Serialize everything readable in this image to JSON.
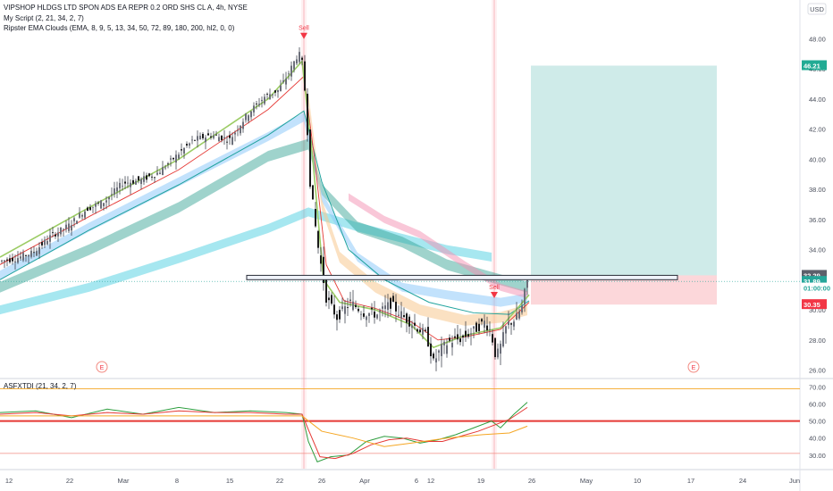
{
  "chart_data": [
    {
      "type": "candlestick",
      "title": "VIPSHOP HLDGS LTD SPON ADS EA REPR 0.2 ORD SHS CL A, 4h, NYSE",
      "indicators": [
        "My Script (2, 21, 34, 2, 7)",
        "Ripster EMA Clouds (EMA, 8, 9, 5, 13, 34, 50, 72, 89, 180, 200, hl2, 0, 0)"
      ],
      "currency": "USD",
      "ylim": [
        25.5,
        49.5
      ],
      "ticks_y": [
        26,
        28,
        30,
        32,
        34,
        36,
        38,
        40,
        42,
        44,
        46,
        48
      ],
      "tick_labels_y": [
        "26.00",
        "28.00",
        "30.00",
        "32.00",
        "34.00",
        "36.00",
        "38.00",
        "40.00",
        "42.00",
        "44.00",
        "46.00",
        "48.00"
      ],
      "x_labels": [
        "12",
        "22",
        "Mar",
        "8",
        "15",
        "22",
        "26",
        "Apr",
        "6",
        "12",
        "19",
        "26",
        "May",
        "10",
        "17",
        "24",
        "Jun"
      ],
      "price_badges": [
        {
          "label": "46.21",
          "value": 46.21,
          "color": "#22ab94"
        },
        {
          "label": "32.29",
          "value": 32.29,
          "color": "#5d606b"
        },
        {
          "label": "31.89",
          "value": 31.89,
          "color": "#26a69a"
        },
        {
          "label": "01:00:00",
          "value": 31.45,
          "color": "#26a69a"
        },
        {
          "label": "30.35",
          "value": 30.35,
          "color": "#f23645"
        }
      ],
      "signals": [
        {
          "label": "Sell",
          "price": 47.8
        },
        {
          "label": "Sell",
          "price": 30.6
        }
      ],
      "earnings_marker": "E",
      "long_position": {
        "entry": 32.29,
        "target": 46.21,
        "stop": 30.35
      },
      "support_zone": [
        32.0,
        32.29
      ],
      "candle_waypoints": [
        [
          0,
          33.2
        ],
        [
          20,
          33.4
        ],
        [
          40,
          33.8
        ],
        [
          60,
          34.9
        ],
        [
          80,
          35.6
        ],
        [
          100,
          36.7
        ],
        [
          120,
          37.2
        ],
        [
          140,
          38.4
        ],
        [
          160,
          38.6
        ],
        [
          180,
          39.1
        ],
        [
          200,
          40.2
        ],
        [
          220,
          41.3
        ],
        [
          240,
          41.6
        ],
        [
          260,
          41.3
        ],
        [
          280,
          43.0
        ],
        [
          300,
          44.2
        ],
        [
          315,
          44.6
        ],
        [
          325,
          45.6
        ],
        [
          335,
          46.8
        ],
        [
          340,
          47.0
        ],
        [
          345,
          44.0
        ],
        [
          350,
          38.5
        ],
        [
          358,
          34.5
        ],
        [
          368,
          30.8
        ],
        [
          380,
          29.5
        ],
        [
          395,
          30.5
        ],
        [
          410,
          29.8
        ],
        [
          425,
          29.7
        ],
        [
          440,
          30.4
        ],
        [
          455,
          29.5
        ],
        [
          470,
          28.8
        ],
        [
          480,
          28.3
        ],
        [
          488,
          26.5
        ],
        [
          496,
          27.4
        ],
        [
          506,
          27.9
        ],
        [
          520,
          28.1
        ],
        [
          535,
          28.7
        ],
        [
          545,
          29.2
        ],
        [
          552,
          28.6
        ],
        [
          558,
          26.8
        ],
        [
          563,
          27.6
        ],
        [
          570,
          29.0
        ],
        [
          580,
          29.4
        ],
        [
          588,
          30.3
        ],
        [
          592,
          31.9
        ]
      ]
    },
    {
      "type": "line",
      "title": "ASFXTDI (21, 34, 2, 7)",
      "ylim": [
        22,
        75
      ],
      "ticks_y": [
        30,
        40,
        50,
        60,
        70
      ],
      "tick_labels_y": [
        "30.00",
        "40.00",
        "50.00",
        "60.00",
        "70.00"
      ],
      "levels": [
        {
          "value": 69.0,
          "color": "#f5a623"
        },
        {
          "value": 50.0,
          "color": "#e53935"
        },
        {
          "value": 31.0,
          "color": "#f28b82"
        }
      ],
      "series": [
        {
          "color": "#2e9e3f",
          "points": [
            [
              0,
              55
            ],
            [
              40,
              56
            ],
            [
              80,
              52
            ],
            [
              120,
              57
            ],
            [
              160,
              54
            ],
            [
              200,
              58
            ],
            [
              240,
              55
            ],
            [
              280,
              56
            ],
            [
              320,
              55
            ],
            [
              338,
              54
            ],
            [
              345,
              38
            ],
            [
              355,
              26
            ],
            [
              370,
              29
            ],
            [
              390,
              30
            ],
            [
              410,
              38
            ],
            [
              430,
              41
            ],
            [
              450,
              40
            ],
            [
              470,
              37
            ],
            [
              490,
              39
            ],
            [
              510,
              42
            ],
            [
              530,
              46
            ],
            [
              550,
              50
            ],
            [
              560,
              46
            ],
            [
              575,
              54
            ],
            [
              590,
              61
            ]
          ]
        },
        {
          "color": "#e53935",
          "points": [
            [
              0,
              54
            ],
            [
              40,
              55
            ],
            [
              80,
              53
            ],
            [
              120,
              55
            ],
            [
              160,
              54
            ],
            [
              200,
              56
            ],
            [
              240,
              55
            ],
            [
              280,
              55
            ],
            [
              320,
              54
            ],
            [
              338,
              54
            ],
            [
              345,
              45
            ],
            [
              358,
              29
            ],
            [
              375,
              28
            ],
            [
              395,
              31
            ],
            [
              415,
              36
            ],
            [
              435,
              39
            ],
            [
              455,
              40
            ],
            [
              475,
              38
            ],
            [
              495,
              38
            ],
            [
              515,
              41
            ],
            [
              535,
              44
            ],
            [
              555,
              48
            ],
            [
              570,
              51
            ],
            [
              590,
              58
            ]
          ]
        },
        {
          "color": "#f5a623",
          "points": [
            [
              0,
              53
            ],
            [
              80,
              53
            ],
            [
              160,
              53
            ],
            [
              240,
              53
            ],
            [
              320,
              53
            ],
            [
              338,
              53
            ],
            [
              360,
              44
            ],
            [
              395,
              40
            ],
            [
              430,
              35
            ],
            [
              460,
              37
            ],
            [
              500,
              40
            ],
            [
              540,
              42
            ],
            [
              570,
              43
            ],
            [
              590,
              47
            ]
          ]
        }
      ]
    }
  ]
}
